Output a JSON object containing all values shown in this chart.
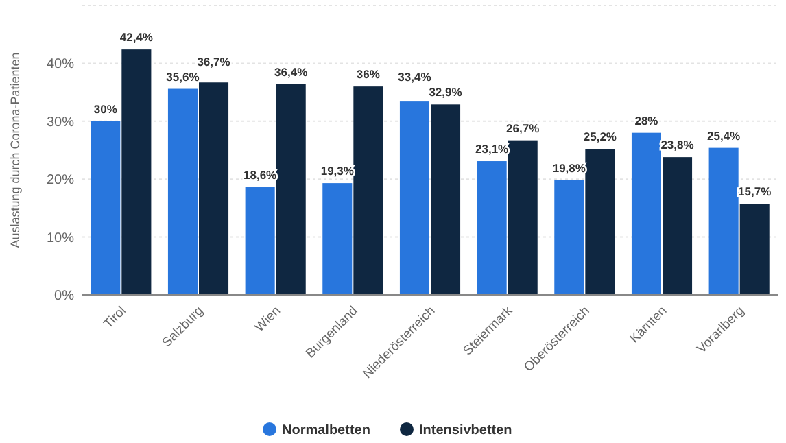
{
  "chart_data": {
    "type": "bar",
    "ylabel": "Auslastung durch Corona-Patienten",
    "categories": [
      "Tirol",
      "Salzburg",
      "Wien",
      "Burgenland",
      "Niederösterreich",
      "Steiermark",
      "Oberösterreich",
      "Kärnten",
      "Vorarlberg"
    ],
    "series": [
      {
        "name": "Normalbetten",
        "color": "#2876dd",
        "values": [
          30,
          35.6,
          18.6,
          19.3,
          33.4,
          23.1,
          19.8,
          28,
          25.4
        ],
        "value_labels": [
          "30%",
          "35,6%",
          "18,6%",
          "19,3%",
          "33,4%",
          "23,1%",
          "19,8%",
          "28%",
          "25,4%"
        ]
      },
      {
        "name": "Intensivbetten",
        "color": "#0f2741",
        "values": [
          42.4,
          36.7,
          36.4,
          36,
          32.9,
          26.7,
          25.2,
          23.8,
          15.7
        ],
        "value_labels": [
          "42,4%",
          "36,7%",
          "36,4%",
          "36%",
          "32,9%",
          "26,7%",
          "25,2%",
          "23,8%",
          "15,7%"
        ]
      }
    ],
    "ylim": [
      0,
      50
    ],
    "yticks": [
      {
        "value": 0,
        "label": "0%"
      },
      {
        "value": 10,
        "label": "10%"
      },
      {
        "value": 20,
        "label": "20%"
      },
      {
        "value": 30,
        "label": "30%"
      },
      {
        "value": 40,
        "label": "40%"
      },
      {
        "value": 50,
        "label": null
      }
    ],
    "grid": "y",
    "legend": "bottom"
  }
}
